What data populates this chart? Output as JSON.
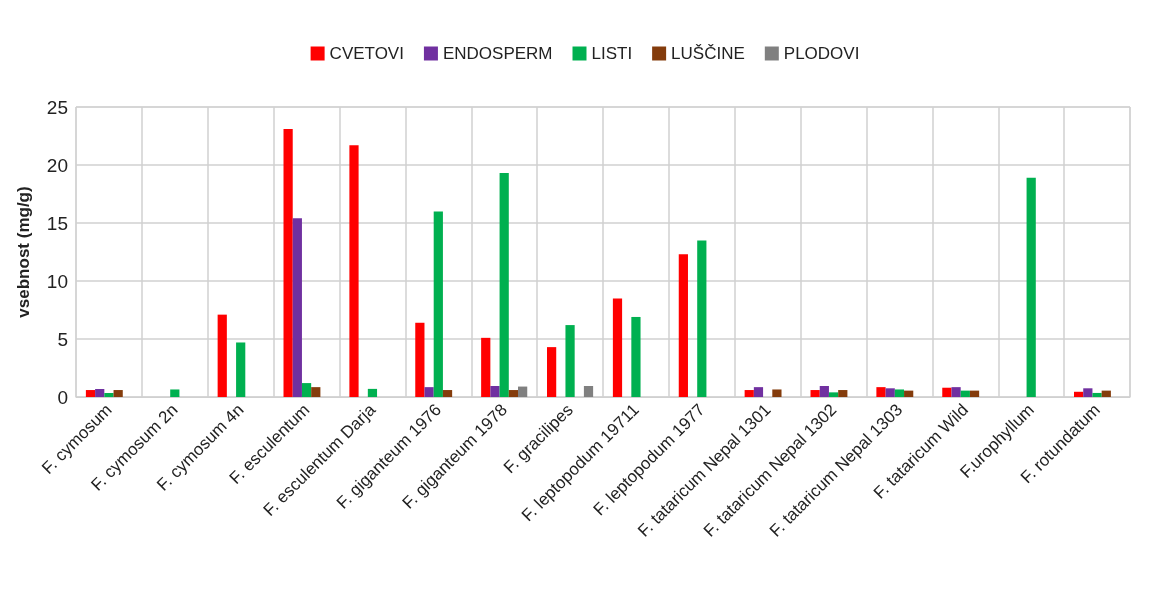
{
  "chart_data": {
    "type": "bar",
    "ylabel": "vsebnost (mg/g)",
    "categories": [
      "F. cymosum",
      "F. cymosum 2n",
      "F. cymosum 4n",
      "F. esculentum",
      "F. esculentum Darja",
      "F. giganteum 1976",
      "F. giganteum 1978",
      "F. gracilipes",
      "F. leptopodum 19711",
      "F. leptopodum 1977",
      "F. tataricum Nepal 1301",
      "F. tataricum Nepal 1302",
      "F. tataricum Nepal 1303",
      "F. tataricum Wild",
      "F.urophyllum",
      "F. rotundatum"
    ],
    "series": [
      {
        "name": "CVETOVI",
        "color": "#ff0000",
        "values": [
          0.6,
          null,
          7.1,
          23.1,
          21.7,
          6.4,
          5.1,
          4.3,
          8.5,
          12.3,
          0.6,
          0.6,
          0.85,
          0.8,
          null,
          0.45
        ]
      },
      {
        "name": "ENDOSPERM",
        "color": "#7030a0",
        "values": [
          0.7,
          null,
          null,
          15.4,
          null,
          0.85,
          0.95,
          null,
          null,
          null,
          0.85,
          0.95,
          0.75,
          0.85,
          null,
          0.75
        ]
      },
      {
        "name": "LISTI",
        "color": "#00b050",
        "values": [
          0.35,
          0.65,
          4.7,
          1.2,
          0.7,
          16.0,
          19.3,
          6.2,
          6.9,
          13.5,
          null,
          0.4,
          0.65,
          0.55,
          18.9,
          0.35
        ]
      },
      {
        "name": "LUŠČINE",
        "color": "#843c0c",
        "values": [
          0.6,
          null,
          null,
          0.85,
          null,
          0.6,
          0.6,
          null,
          null,
          null,
          0.65,
          0.6,
          0.55,
          0.55,
          null,
          0.55
        ]
      },
      {
        "name": "PLODOVI",
        "color": "#808080",
        "values": [
          null,
          null,
          null,
          null,
          null,
          null,
          0.9,
          0.95,
          null,
          null,
          null,
          null,
          null,
          null,
          null,
          null
        ]
      }
    ],
    "ylim": [
      0,
      25
    ],
    "yticks": [
      0,
      5,
      10,
      15,
      20,
      25
    ],
    "grid": true,
    "legend": "top"
  }
}
